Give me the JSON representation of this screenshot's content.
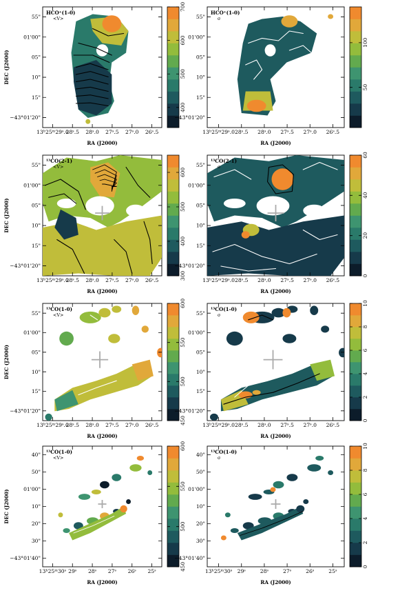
{
  "colormap": [
    "#0c1c2a",
    "#163a4a",
    "#1e5a5e",
    "#2a7a6a",
    "#3e9470",
    "#62aa4e",
    "#93bc3c",
    "#c0bd3a",
    "#e1a83a",
    "#f08a2e"
  ],
  "contour_colors": {
    "dark": "#000000",
    "light": "#ffffff"
  },
  "cross_color": "#aaaaaa",
  "chart_data": [
    {
      "id": "p1",
      "type": "heatmap",
      "title": "HCO⁺(1-0)",
      "subtitle": "<V>",
      "ylabel": "DEC (J2000)",
      "xlabel": "RA (J2000)",
      "yticks": [
        "55\"",
        "01'00\"",
        "05\"",
        "10\"",
        "15\"",
        "−43°01'20\""
      ],
      "xticks": [
        "13ʰ25ᵐ29ˢ.0",
        "28ˢ.5",
        "28ˢ.0",
        "27ˢ.5",
        "27ˢ.0",
        "26ˢ.5"
      ],
      "colorbar": {
        "range": [
          340,
          700
        ],
        "ticks": [
          "400",
          "500",
          "600",
          "700"
        ],
        "tick_values": [
          400,
          500,
          600,
          700
        ]
      }
    },
    {
      "id": "p2",
      "type": "heatmap",
      "title": "HCO⁺(1-0)",
      "subtitle": "σ",
      "ylabel": "DEC (J2000)",
      "xlabel": "RA (J2000)",
      "yticks": [
        "55\"",
        "01'00\"",
        "05\"",
        "10\"",
        "15\"",
        "−43°01'20\""
      ],
      "xticks": [
        "13ʰ25ᵐ29ˢ.0",
        "28ˢ.5",
        "28ˢ.0",
        "27ˢ.5",
        "27ˢ.0",
        "26ˢ.5"
      ],
      "colorbar": {
        "range": [
          5,
          140
        ],
        "ticks": [
          "50",
          "100"
        ],
        "tick_values": [
          50,
          100
        ]
      }
    },
    {
      "id": "p3",
      "type": "heatmap",
      "title": "¹³CO(2-1)",
      "subtitle": "<V>",
      "ylabel": "DEC (J2000)",
      "xlabel": "RA (J2000)",
      "yticks": [
        "55\"",
        "01'00\"",
        "05\"",
        "10\"",
        "15\"",
        "−43°01'20\""
      ],
      "xticks": [
        "13ʰ25ᵐ29ˢ.0",
        "28ˢ.5",
        "28ˢ.0",
        "27ˢ.5",
        "27ˢ.0",
        "26ˢ.5"
      ],
      "colorbar": {
        "range": [
          300,
          650
        ],
        "ticks": [
          "300",
          "400",
          "500",
          "600"
        ],
        "tick_values": [
          300,
          400,
          500,
          600
        ]
      }
    },
    {
      "id": "p4",
      "type": "heatmap",
      "title": "¹³CO(2-1)",
      "subtitle": "σ",
      "ylabel": "DEC (J2000)",
      "xlabel": "RA (J2000)",
      "yticks": [
        "55\"",
        "01'00\"",
        "05\"",
        "10\"",
        "15\"",
        "−43°01'20\""
      ],
      "xticks": [
        "13ʰ25ᵐ29ˢ.0",
        "28ˢ.5",
        "28ˢ.0",
        "27ˢ.5",
        "27ˢ.0",
        "26ˢ.5"
      ],
      "colorbar": {
        "range": [
          0,
          60
        ],
        "ticks": [
          "0",
          "20",
          "40",
          "60"
        ],
        "tick_values": [
          0,
          20,
          40,
          60
        ]
      }
    },
    {
      "id": "p5",
      "type": "heatmap",
      "title": "¹³CO(1-0)",
      "subtitle": "<V>",
      "ylabel": "DEC (J2000)",
      "xlabel": "RA (J2000)",
      "yticks": [
        "55\"",
        "01'00\"",
        "05\"",
        "10\"",
        "15\"",
        "−43°01'20\""
      ],
      "xticks": [
        "13ʰ25ᵐ29ˢ.0",
        "28ˢ.5",
        "28ˢ.0",
        "27ˢ.5",
        "27ˢ.0",
        "26ˢ.5"
      ],
      "colorbar": {
        "range": [
          450,
          600
        ],
        "ticks": [
          "450",
          "500",
          "550",
          "600"
        ],
        "tick_values": [
          450,
          500,
          550,
          600
        ]
      }
    },
    {
      "id": "p6",
      "type": "heatmap",
      "title": "¹³CO(1-0)",
      "subtitle": "σ",
      "ylabel": "DEC (J2000)",
      "xlabel": "RA (J2000)",
      "yticks": [
        "55\"",
        "01'00\"",
        "05\"",
        "10\"",
        "15\"",
        "−43°01'20\""
      ],
      "xticks": [
        "13ʰ25ᵐ29ˢ.0",
        "28ˢ.5",
        "28ˢ.0",
        "27ˢ.5",
        "27ˢ.0",
        "26ˢ.5"
      ],
      "colorbar": {
        "range": [
          0,
          10
        ],
        "ticks": [
          "0",
          "2",
          "4",
          "6",
          "8",
          "10"
        ],
        "tick_values": [
          0,
          2,
          4,
          6,
          8,
          10
        ]
      }
    },
    {
      "id": "p7",
      "type": "heatmap",
      "title": "¹³CO(1-0)",
      "subtitle": "<V>",
      "ylabel": "DEC (J2000)",
      "xlabel": "RA (J2000)",
      "yticks": [
        "40\"",
        "50\"",
        "01'00\"",
        "10\"",
        "20\"",
        "30\"",
        "−43°01'40\""
      ],
      "xticks": [
        "13ʰ25ᵐ30ˢ",
        "29ˢ",
        "28ˢ",
        "27ˢ",
        "26ˢ",
        "25ˢ"
      ],
      "colorbar": {
        "range": [
          450,
          600
        ],
        "ticks": [
          "450",
          "500",
          "550",
          "600"
        ],
        "tick_values": [
          450,
          500,
          550,
          600
        ]
      }
    },
    {
      "id": "p8",
      "type": "heatmap",
      "title": "¹³CO(1-0)",
      "subtitle": "σ",
      "ylabel": "DEC (J2000)",
      "xlabel": "RA (J2000)",
      "yticks": [
        "40\"",
        "50\"",
        "01'00\"",
        "10\"",
        "20\"",
        "30\"",
        "−43°01'40\""
      ],
      "xticks": [
        "13ʰ25ᵐ30ˢ",
        "29ˢ",
        "28ˢ",
        "27ˢ",
        "26ˢ",
        "25ˢ"
      ],
      "colorbar": {
        "range": [
          0,
          10
        ],
        "ticks": [
          "0",
          "2",
          "4",
          "6",
          "8",
          "10"
        ],
        "tick_values": [
          0,
          2,
          4,
          6,
          8,
          10
        ]
      }
    }
  ]
}
